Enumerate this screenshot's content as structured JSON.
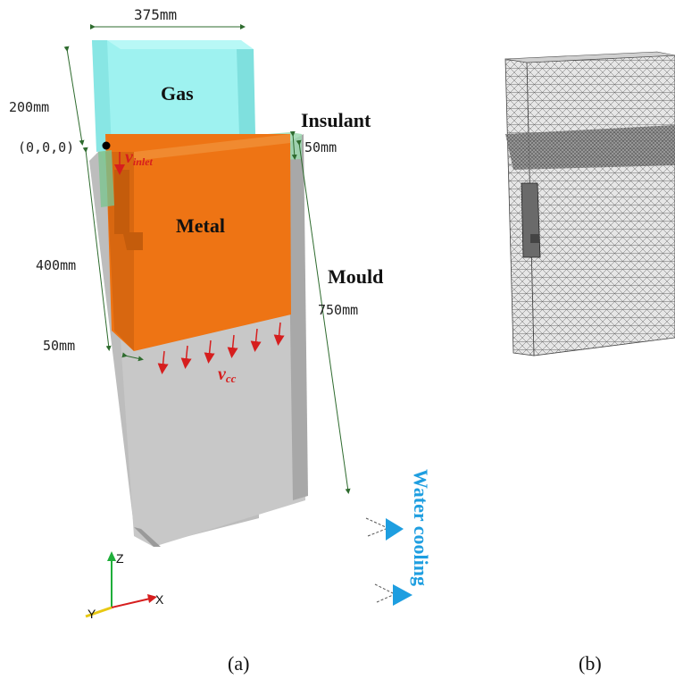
{
  "panel_a": {
    "dim_width": "375mm",
    "dim_gas_height": "200mm",
    "origin": "(0,0,0)",
    "dim_metal_height": "400mm",
    "dim_wall": "50mm",
    "dim_insulant": "50mm",
    "dim_mould_height": "750mm",
    "region_gas": "Gas",
    "region_insulant": "Insulant",
    "region_metal": "Metal",
    "region_mould": "Mould",
    "v_inlet_main": "v",
    "v_inlet_sub": "inlet",
    "v_cc_main": "v",
    "v_cc_sub": "cc",
    "water_cooling": "Water cooling",
    "axis_z": "Z",
    "axis_x": "X",
    "axis_y": "Y",
    "caption": "(a)"
  },
  "panel_b": {
    "caption": "(b)"
  },
  "colors": {
    "gas": "#9ef2f0",
    "metal": "#ee7414",
    "mould": "#c4c4c4",
    "insulant": "#9ed8b0",
    "arrow_red": "#d61e1e",
    "water_blue": "#1e9ee0",
    "dim_line": "#2e6b2e"
  }
}
